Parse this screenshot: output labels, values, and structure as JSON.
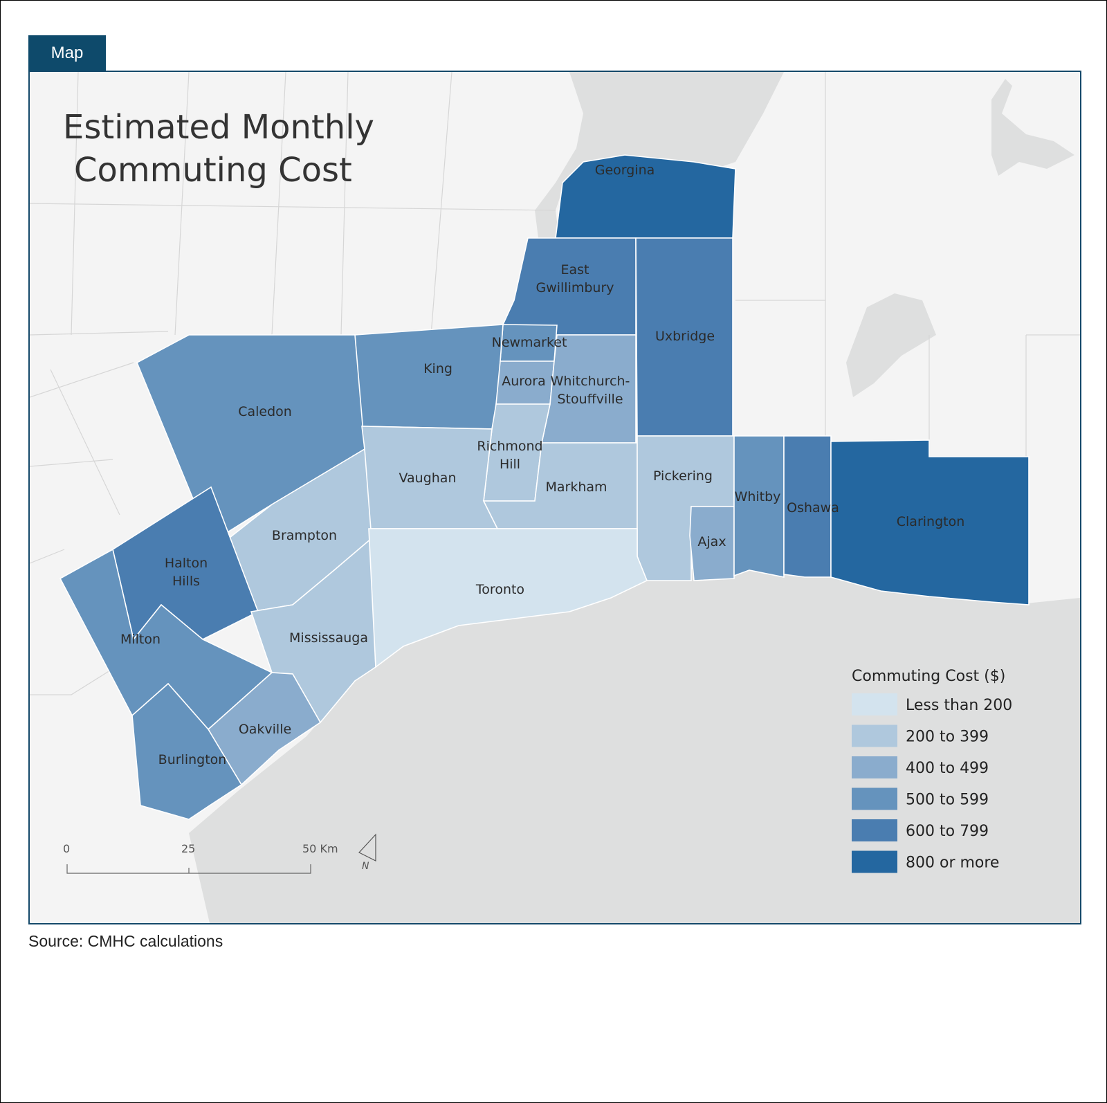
{
  "tab_label": "Map",
  "title_line1": "Estimated Monthly",
  "title_line2": "Commuting Cost",
  "source": "Source: CMHC calculations",
  "colors": {
    "land": "#f4f4f4",
    "water": "#dedfdf",
    "boundary": "#d6d6d6",
    "frame": "#15496a"
  },
  "legend": {
    "title": "Commuting Cost ($)",
    "classes": [
      {
        "label": "Less than 200",
        "color": "#d3e3ee"
      },
      {
        "label": "200 to 399",
        "color": "#afc8dd"
      },
      {
        "label": "400 to 499",
        "color": "#8aaccd"
      },
      {
        "label": "500 to 599",
        "color": "#6593bd"
      },
      {
        "label": "600 to 799",
        "color": "#4a7db0"
      },
      {
        "label": "800 or more",
        "color": "#2467a0"
      }
    ]
  },
  "regions": [
    {
      "name": "Georgina",
      "label": [
        "Georgina"
      ],
      "class": 5
    },
    {
      "name": "East Gwillimbury",
      "label": [
        "East",
        "Gwillimbury"
      ],
      "class": 4
    },
    {
      "name": "Uxbridge",
      "label": [
        "Uxbridge"
      ],
      "class": 4
    },
    {
      "name": "Newmarket",
      "label": [
        "Newmarket"
      ],
      "class": 3
    },
    {
      "name": "King",
      "label": [
        "King"
      ],
      "class": 3
    },
    {
      "name": "Caledon",
      "label": [
        "Caledon"
      ],
      "class": 3
    },
    {
      "name": "Aurora",
      "label": [
        "Aurora"
      ],
      "class": 2
    },
    {
      "name": "Whitchurch-Stouffville",
      "label": [
        "Whitchurch-",
        "Stouffville"
      ],
      "class": 2
    },
    {
      "name": "Richmond Hill",
      "label": [
        "Richmond",
        "Hill"
      ],
      "class": 1
    },
    {
      "name": "Vaughan",
      "label": [
        "Vaughan"
      ],
      "class": 1
    },
    {
      "name": "Markham",
      "label": [
        "Markham"
      ],
      "class": 1
    },
    {
      "name": "Pickering",
      "label": [
        "Pickering"
      ],
      "class": 1
    },
    {
      "name": "Ajax",
      "label": [
        "Ajax"
      ],
      "class": 2
    },
    {
      "name": "Whitby",
      "label": [
        "Whitby"
      ],
      "class": 3
    },
    {
      "name": "Oshawa",
      "label": [
        "Oshawa"
      ],
      "class": 4
    },
    {
      "name": "Clarington",
      "label": [
        "Clarington"
      ],
      "class": 5
    },
    {
      "name": "Brampton",
      "label": [
        "Brampton"
      ],
      "class": 1
    },
    {
      "name": "Halton Hills",
      "label": [
        "Halton",
        "Hills"
      ],
      "class": 4
    },
    {
      "name": "Milton",
      "label": [
        "Milton"
      ],
      "class": 3
    },
    {
      "name": "Mississauga",
      "label": [
        "Mississauga"
      ],
      "class": 1
    },
    {
      "name": "Toronto",
      "label": [
        "Toronto"
      ],
      "class": 0
    },
    {
      "name": "Oakville",
      "label": [
        "Oakville"
      ],
      "class": 2
    },
    {
      "name": "Burlington",
      "label": [
        "Burlington"
      ],
      "class": 3
    }
  ],
  "scale_bar": {
    "ticks": [
      "0",
      "25",
      "50 Km"
    ]
  },
  "north_arrow": "N"
}
